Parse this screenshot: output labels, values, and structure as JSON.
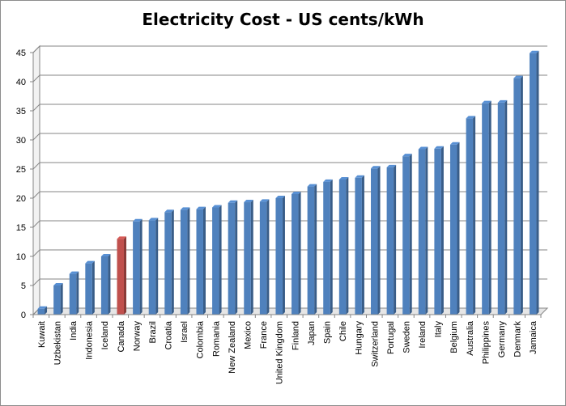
{
  "chart_data": {
    "type": "bar",
    "title": "Electricity Cost - US cents/kWh",
    "xlabel": "",
    "ylabel": "",
    "ylim": [
      0,
      45
    ],
    "yticks": [
      0,
      5,
      10,
      15,
      20,
      25,
      30,
      35,
      40,
      45
    ],
    "grid": true,
    "legend": "none",
    "categories": [
      "Kuwait",
      "Uzbekistan",
      "India",
      "Indonesia",
      "Iceland",
      "Canada",
      "Norway",
      "Brazil",
      "Croatia",
      "Israel",
      "Colombia",
      "Romania",
      "New Zealand",
      "Mexico",
      "France",
      "United Kingdom",
      "Finland",
      "Japan",
      "Spain",
      "Chile",
      "Hungary",
      "Switzerland",
      "Portugal",
      "Sweden",
      "Ireland",
      "Italy",
      "Belgium",
      "Australia",
      "Philippines",
      "Germany",
      "Denmark",
      "Jamaica"
    ],
    "values": [
      1.0,
      5.0,
      7.0,
      8.8,
      10.0,
      13.0,
      16.0,
      16.2,
      17.6,
      18.0,
      18.1,
      18.4,
      19.2,
      19.3,
      19.4,
      20.0,
      20.7,
      22.0,
      22.8,
      23.2,
      23.5,
      25.1,
      25.3,
      27.2,
      28.4,
      28.5,
      29.2,
      33.7,
      36.3,
      36.4,
      40.6,
      44.9
    ],
    "highlight": "Canada",
    "colors": {
      "bar": "#4f81bd",
      "highlight": "#c0504d",
      "grid": "#868686"
    }
  }
}
